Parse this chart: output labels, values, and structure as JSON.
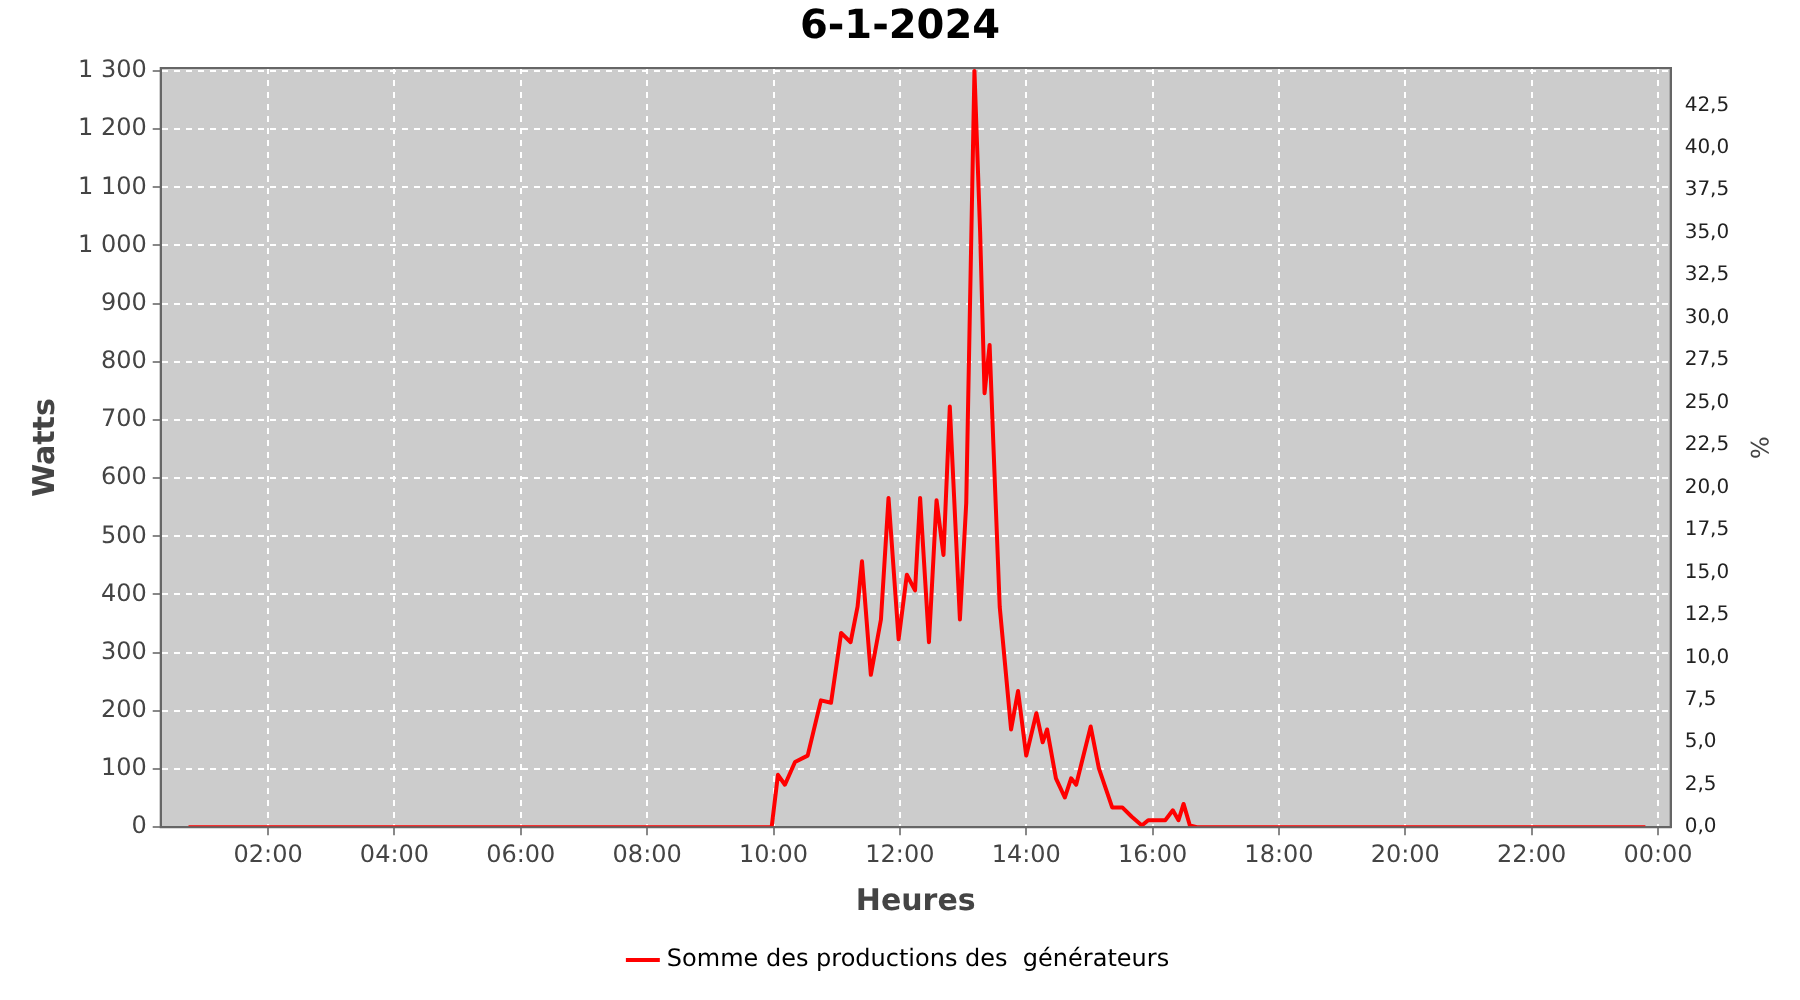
{
  "chart_data": {
    "type": "line",
    "title": "6-1-2024",
    "xlabel": "Heures",
    "ylabel": "Watts",
    "y2label": "%",
    "xlim": [
      0.3,
      24.2
    ],
    "xticks": [
      {
        "value": 2,
        "label": "02:00"
      },
      {
        "value": 4,
        "label": "04:00"
      },
      {
        "value": 6,
        "label": "06:00"
      },
      {
        "value": 8,
        "label": "08:00"
      },
      {
        "value": 10,
        "label": "10:00"
      },
      {
        "value": 12,
        "label": "12:00"
      },
      {
        "value": 14,
        "label": "14:00"
      },
      {
        "value": 16,
        "label": "16:00"
      },
      {
        "value": 18,
        "label": "18:00"
      },
      {
        "value": 20,
        "label": "20:00"
      },
      {
        "value": 22,
        "label": "22:00"
      },
      {
        "value": 24,
        "label": "00:00"
      }
    ],
    "ylim": [
      0,
      1305
    ],
    "yticks": [
      0,
      100,
      200,
      300,
      400,
      500,
      600,
      700,
      800,
      900,
      {
        "value": 1000,
        "label": "1 000"
      },
      {
        "value": 1100,
        "label": "1 100"
      },
      {
        "value": 1200,
        "label": "1 200"
      },
      {
        "value": 1300,
        "label": "1 300"
      }
    ],
    "y2lim": [
      0,
      44.7
    ],
    "y2ticks": [
      {
        "value": 0,
        "label": "0,0"
      },
      {
        "value": 2.5,
        "label": "2,5"
      },
      {
        "value": 5,
        "label": "5,0"
      },
      {
        "value": 7.5,
        "label": "7,5"
      },
      {
        "value": 10,
        "label": "10,0"
      },
      {
        "value": 12.5,
        "label": "12,5"
      },
      {
        "value": 15,
        "label": "15,0"
      },
      {
        "value": 17.5,
        "label": "17,5"
      },
      {
        "value": 20,
        "label": "20,0"
      },
      {
        "value": 22.5,
        "label": "22,5"
      },
      {
        "value": 25,
        "label": "25,0"
      },
      {
        "value": 27.5,
        "label": "27,5"
      },
      {
        "value": 30,
        "label": "30,0"
      },
      {
        "value": 32.5,
        "label": "32,5"
      },
      {
        "value": 35,
        "label": "35,0"
      },
      {
        "value": 37.5,
        "label": "37,5"
      },
      {
        "value": 40,
        "label": "40,0"
      },
      {
        "value": 42.5,
        "label": "42,5"
      }
    ],
    "grid": true,
    "legend": "bottom",
    "marker": "none",
    "line_style": "solid",
    "series": [
      {
        "name": "Somme des productions des  générateurs",
        "color": "#ff0000",
        "x": [
          0.74,
          9.9,
          9.97,
          10.07,
          10.18,
          10.34,
          10.54,
          10.75,
          10.91,
          11.07,
          11.22,
          11.33,
          11.4,
          11.54,
          11.7,
          11.82,
          11.98,
          12.11,
          12.24,
          12.32,
          12.46,
          12.58,
          12.69,
          12.79,
          12.95,
          13.05,
          13.18,
          13.27,
          13.34,
          13.42,
          13.48,
          13.58,
          13.76,
          13.87,
          14.0,
          14.16,
          14.26,
          14.33,
          14.47,
          14.61,
          14.71,
          14.79,
          15.02,
          15.15,
          15.36,
          15.52,
          15.67,
          15.83,
          15.93,
          16.2,
          16.32,
          16.41,
          16.49,
          16.59,
          16.7,
          23.8
        ],
        "values": [
          0,
          0,
          0,
          90,
          73,
          112,
          123,
          218,
          214,
          334,
          318,
          379,
          457,
          262,
          357,
          566,
          323,
          434,
          407,
          566,
          318,
          562,
          468,
          723,
          357,
          557,
          1300,
          1023,
          746,
          829,
          657,
          379,
          168,
          234,
          123,
          196,
          146,
          168,
          84,
          51,
          84,
          73,
          173,
          101,
          34,
          34,
          18,
          3,
          12,
          12,
          29,
          12,
          40,
          3,
          0,
          0
        ]
      }
    ]
  }
}
